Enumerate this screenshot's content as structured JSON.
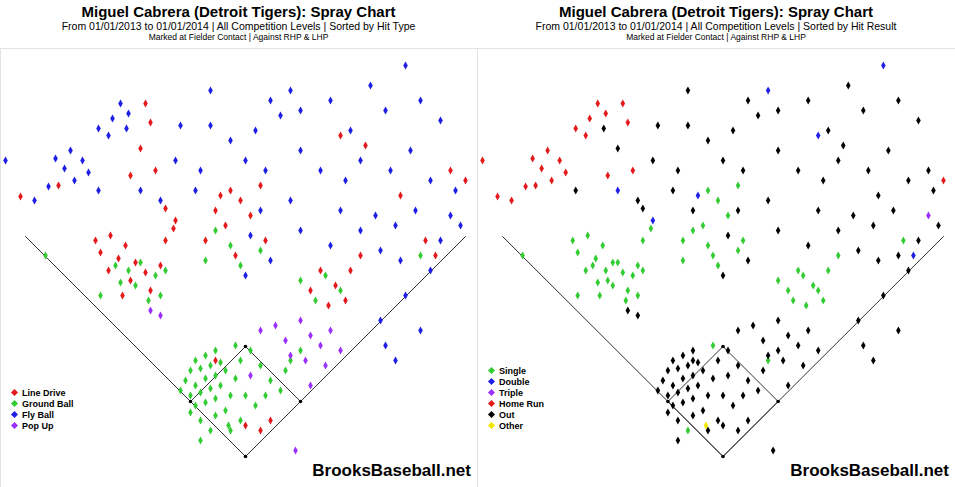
{
  "chart_data": [
    {
      "type": "scatter",
      "title": "Miguel Cabrera (Detroit Tigers): Spray Chart",
      "subtitle": [
        "From 01/01/2013 to 01/01/2014 | All Competition Levels | Sorted by Hit Type",
        "Marked at Fielder Contact |  Against RHP & LHP"
      ],
      "annotations": [
        "BrooksBaseball.net"
      ],
      "xlim": [
        -245,
        232
      ],
      "ylim": [
        -31,
        408
      ],
      "tick_labels": false,
      "legend": "bottom-left",
      "marker": "diamond",
      "series": [
        {
          "name": "Line Drive",
          "color": "#e41a1c",
          "x": [
            -100,
            -95,
            -105,
            -90,
            -115,
            -225,
            -187,
            -80,
            -70,
            -135,
            -120,
            -150,
            -127,
            -110,
            -137,
            -100,
            -85,
            -115,
            -123,
            -95,
            -145,
            -80,
            -72,
            -15,
            -5,
            -30,
            5,
            -20,
            -40,
            20,
            -10,
            -25,
            15,
            95,
            120,
            155,
            180,
            190,
            75,
            90,
            65,
            105,
            100,
            83,
            115,
            220,
            205,
            0,
            15,
            -30,
            25
          ],
          "y": [
            353,
            334,
            308,
            286,
            281,
            260,
            271,
            248,
            236,
            221,
            211,
            216,
            198,
            194,
            186,
            184,
            191,
            176,
            161,
            166,
            204,
            216,
            228,
            266,
            256,
            246,
            241,
            231,
            216,
            216,
            201,
            261,
            271,
            321,
            311,
            261,
            216,
            201,
            186,
            171,
            166,
            186,
            156,
            151,
            201,
            276,
            286,
            31,
            26,
            96,
            36
          ]
        },
        {
          "name": "Ground Ball",
          "color": "#33cc33",
          "x": [
            -130,
            -117,
            -105,
            -90,
            -80,
            -110,
            -97,
            -145,
            -200,
            -125,
            -85,
            -30,
            -15,
            15,
            -40,
            -5,
            80,
            95,
            70,
            175,
            55,
            -50,
            -40,
            -30,
            -55,
            -45,
            -35,
            -25,
            -60,
            -50,
            -40,
            -30,
            -20,
            -55,
            -45,
            -35,
            -25,
            -10,
            -50,
            -40,
            -30,
            -15,
            -5,
            5,
            -45,
            -30,
            -55,
            -20,
            15,
            25,
            35,
            20,
            40,
            0,
            10,
            -5,
            -15,
            -35,
            -65,
            -10,
            45,
            55,
            -45,
            -17
          ],
          "y": [
            191,
            186,
            194,
            181,
            186,
            171,
            156,
            161,
            201,
            174,
            161,
            226,
            211,
            206,
            196,
            191,
            181,
            166,
            156,
            201,
            176,
            96,
            101,
            106,
            86,
            88,
            91,
            94,
            76,
            71,
            78,
            81,
            86,
            61,
            64,
            68,
            71,
            78,
            51,
            54,
            58,
            61,
            96,
            106,
            36,
            41,
            44,
            46,
            91,
            76,
            66,
            61,
            86,
            61,
            51,
            36,
            26,
            26,
            66,
            111,
            96,
            106,
            16,
            31
          ]
        },
        {
          "name": "Fly Ball",
          "color": "#1f1fe6",
          "x": [
            -125,
            -117,
            -133,
            -147,
            -119,
            -137,
            -175,
            -190,
            -163,
            -181,
            -157,
            -171,
            -197,
            -147,
            -211,
            -240,
            -105,
            -65,
            -70,
            -85,
            -45,
            0,
            20,
            25,
            35,
            10,
            -35,
            -15,
            -50,
            15,
            5,
            0,
            25,
            -35,
            45,
            55,
            85,
            105,
            125,
            140,
            160,
            175,
            195,
            55,
            75,
            100,
            115,
            145,
            165,
            185,
            210,
            95,
            115,
            130,
            150,
            170,
            195,
            135,
            155,
            185,
            55,
            85,
            45,
            205,
            160,
            175,
            215,
            140,
            150,
            135
          ],
          "y": [
            353,
            343,
            338,
            328,
            328,
            321,
            306,
            298,
            296,
            288,
            284,
            276,
            270,
            266,
            256,
            296,
            266,
            331,
            296,
            256,
            286,
            296,
            286,
            356,
            341,
            326,
            331,
            316,
            266,
            246,
            221,
            181,
            196,
            366,
            366,
            346,
            356,
            326,
            371,
            346,
            391,
            356,
            336,
            306,
            286,
            276,
            296,
            286,
            306,
            276,
            266,
            246,
            226,
            241,
            231,
            246,
            216,
            206,
            196,
            186,
            226,
            211,
            256,
            241,
            161,
            126,
            231,
            111,
            96,
            136
          ]
        },
        {
          "name": "Pop Up",
          "color": "#9b30ff",
          "x": [
            15,
            30,
            40,
            55,
            65,
            75,
            85,
            60,
            45,
            80,
            95,
            5,
            -95,
            -85,
            50,
            65
          ],
          "y": [
            126,
            131,
            116,
            136,
            121,
            111,
            126,
            96,
            101,
            91,
            106,
            81,
            146,
            141,
            6,
            71
          ]
        }
      ]
    },
    {
      "type": "scatter",
      "title": "Miguel Cabrera (Detroit Tigers): Spray Chart",
      "subtitle": [
        "From 01/01/2013 to 01/01/2014 | All Competition Levels | Sorted by Hit Result",
        "Marked at Fielder Contact |  Against RHP & LHP"
      ],
      "annotations": [
        "BrooksBaseball.net"
      ],
      "xlim": [
        -245,
        232
      ],
      "ylim": [
        -31,
        408
      ],
      "tick_labels": false,
      "legend": "bottom-left",
      "marker": "diamond",
      "series": [
        {
          "name": "Single",
          "color": "#33cc33",
          "x": [
            -135,
            -120,
            -150,
            -127,
            -110,
            -137,
            -100,
            -85,
            -115,
            -123,
            -95,
            -145,
            -80,
            -72,
            -130,
            -117,
            -105,
            -90,
            -80,
            -110,
            -97,
            -145,
            -200,
            -125,
            -85,
            -15,
            -5,
            5,
            -20,
            -40,
            20,
            -10,
            15,
            -30,
            -15,
            15,
            -40,
            -5,
            180,
            75,
            90,
            65,
            105,
            100,
            83,
            115,
            80,
            95,
            70,
            55,
            -35,
            -10,
            45
          ],
          "y": [
            221,
            211,
            216,
            198,
            194,
            186,
            184,
            191,
            176,
            161,
            166,
            204,
            216,
            228,
            191,
            186,
            194,
            181,
            186,
            171,
            156,
            161,
            201,
            174,
            161,
            266,
            256,
            241,
            231,
            216,
            216,
            201,
            271,
            226,
            211,
            206,
            196,
            191,
            216,
            186,
            171,
            166,
            186,
            156,
            151,
            201,
            181,
            166,
            156,
            176,
            26,
            111,
            96
          ]
        },
        {
          "name": "Double",
          "color": "#1f1fe6",
          "x": [
            -105,
            -70,
            -25,
            45,
            160,
            95,
            190
          ],
          "y": [
            266,
            236,
            261,
            366,
            391,
            321,
            201
          ]
        },
        {
          "name": "Triple",
          "color": "#9b30ff",
          "x": [
            205
          ],
          "y": [
            241
          ]
        },
        {
          "name": "Home Run",
          "color": "#e41a1c",
          "x": [
            -125,
            -117,
            -133,
            -147,
            -137,
            -175,
            -190,
            -163,
            -181,
            -157,
            -171,
            -197,
            -211,
            -240,
            -100,
            -95,
            -90,
            -115,
            -225,
            -187,
            220
          ],
          "y": [
            353,
            343,
            338,
            328,
            321,
            306,
            298,
            296,
            288,
            284,
            276,
            270,
            256,
            296,
            353,
            334,
            286,
            281,
            260,
            271,
            276
          ]
        },
        {
          "name": "Out",
          "color": "#000000",
          "x": [
            -119,
            -147,
            -65,
            -70,
            -85,
            -105,
            -80,
            -30,
            -45,
            0,
            20,
            25,
            35,
            10,
            -35,
            -15,
            -50,
            15,
            5,
            0,
            25,
            -35,
            55,
            85,
            105,
            125,
            140,
            175,
            195,
            55,
            75,
            100,
            115,
            145,
            165,
            185,
            210,
            95,
            115,
            130,
            150,
            170,
            195,
            135,
            155,
            185,
            55,
            85,
            45,
            160,
            175,
            215,
            120,
            155,
            205,
            175,
            -50,
            -40,
            -30,
            -55,
            -45,
            -35,
            -25,
            -60,
            -50,
            -40,
            -30,
            -20,
            -55,
            -45,
            -35,
            -25,
            -10,
            -50,
            -40,
            -30,
            -15,
            -5,
            5,
            -45,
            -30,
            -55,
            -20,
            15,
            25,
            35,
            20,
            40,
            0,
            10,
            -5,
            -15,
            -65,
            55,
            -45,
            0,
            15,
            -30,
            25,
            15,
            30,
            40,
            55,
            65,
            75,
            85,
            60,
            45,
            80,
            95,
            5,
            -95,
            -85,
            50,
            65,
            140,
            150,
            135
          ],
          "y": [
            328,
            266,
            331,
            296,
            256,
            308,
            248,
            246,
            286,
            296,
            286,
            356,
            341,
            326,
            331,
            316,
            266,
            246,
            221,
            181,
            196,
            366,
            346,
            356,
            326,
            371,
            346,
            356,
            336,
            306,
            286,
            276,
            296,
            286,
            306,
            276,
            266,
            246,
            226,
            241,
            231,
            246,
            216,
            206,
            196,
            186,
            226,
            211,
            256,
            161,
            126,
            231,
            311,
            261,
            286,
            201,
            96,
            101,
            106,
            86,
            88,
            91,
            94,
            76,
            71,
            78,
            81,
            86,
            61,
            64,
            68,
            71,
            78,
            51,
            54,
            58,
            61,
            96,
            106,
            36,
            41,
            44,
            46,
            91,
            76,
            66,
            61,
            86,
            61,
            51,
            36,
            26,
            66,
            106,
            16,
            31,
            26,
            96,
            36,
            126,
            131,
            116,
            136,
            121,
            111,
            126,
            96,
            101,
            91,
            106,
            81,
            146,
            141,
            6,
            71,
            111,
            96,
            136
          ]
        },
        {
          "name": "Other",
          "color": "#f2e600",
          "x": [
            -17
          ],
          "y": [
            31
          ]
        }
      ]
    }
  ]
}
